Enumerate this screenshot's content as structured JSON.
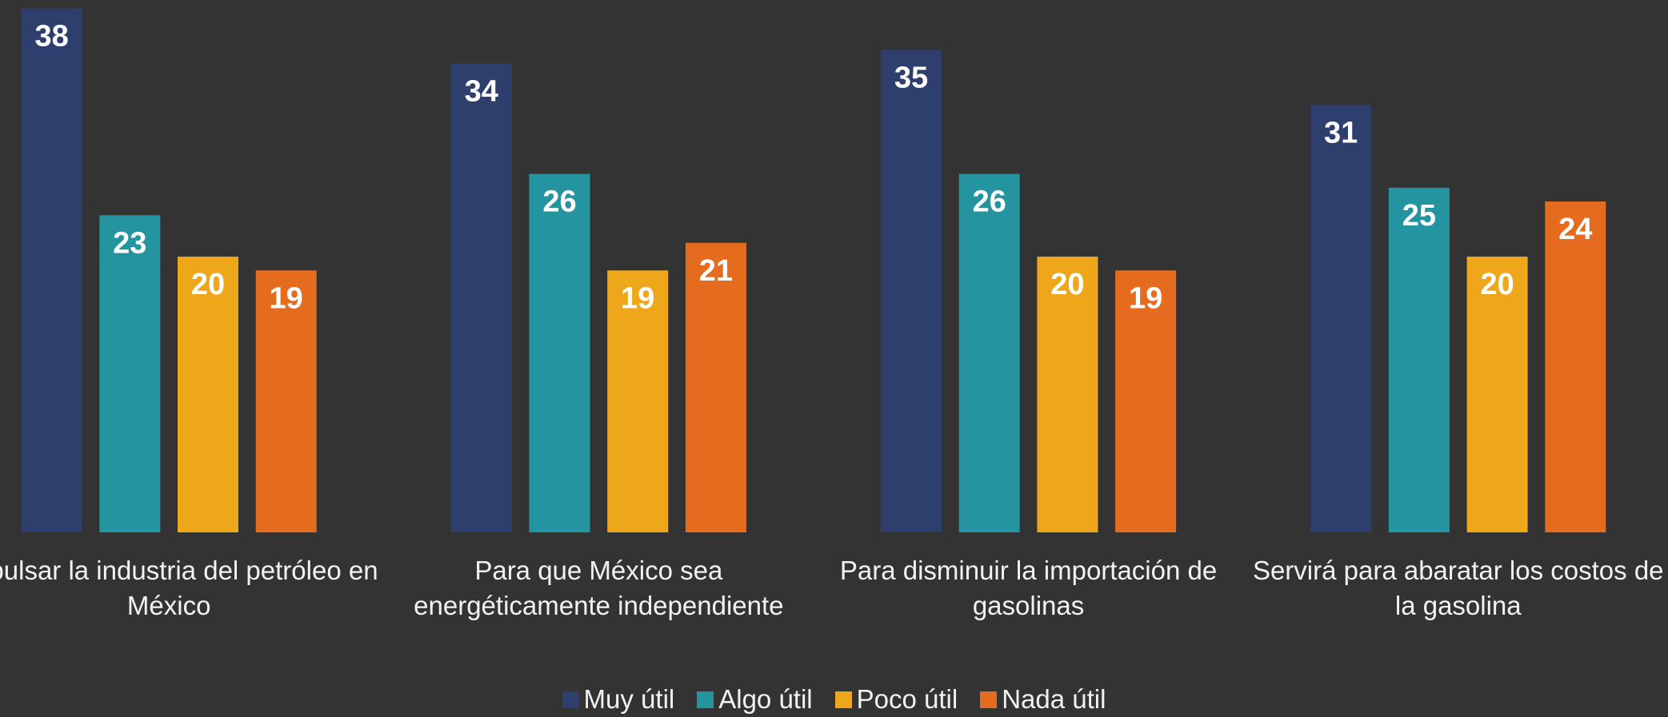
{
  "chart_data": {
    "type": "bar",
    "categories": [
      "Impulsar la industria del petróleo en México",
      "Para que México sea energéticamente independiente",
      "Para disminuir la importación de gasolinas",
      "Servirá para abaratar los costos de la gasolina"
    ],
    "series": [
      {
        "name": "Muy útil",
        "color": "#2e3f6e",
        "values": [
          38,
          34,
          35,
          31
        ]
      },
      {
        "name": "Algo útil",
        "color": "#2494a0",
        "values": [
          23,
          26,
          26,
          25
        ]
      },
      {
        "name": "Poco útil",
        "color": "#eea61b",
        "values": [
          20,
          19,
          20,
          20
        ]
      },
      {
        "name": "Nada útil",
        "color": "#e56b1f",
        "values": [
          19,
          21,
          19,
          24
        ]
      }
    ],
    "ylim": [
      0,
      38
    ],
    "legend": "bottom"
  }
}
